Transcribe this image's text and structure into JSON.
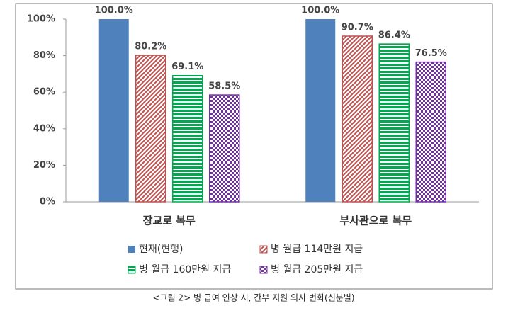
{
  "chart_data": {
    "type": "bar",
    "categories": [
      "장교로 복무",
      "부사관으로 복무"
    ],
    "series": [
      {
        "name": "현재(현행)",
        "color": "#4f81bd",
        "pattern": "solid",
        "values": [
          100.0,
          100.0
        ],
        "value_labels": [
          "100.0%",
          "100.0%"
        ]
      },
      {
        "name": "병 월급 114만원 지급",
        "color": "#c0504d",
        "pattern": "diagonal",
        "values": [
          80.2,
          90.7
        ],
        "value_labels": [
          "80.2%",
          "90.7%"
        ]
      },
      {
        "name": "병 월급 160만원 지급",
        "color": "#00a84f",
        "pattern": "horizontal",
        "values": [
          69.1,
          86.4
        ],
        "value_labels": [
          "69.1%",
          "86.4%"
        ]
      },
      {
        "name": "병 월급 205만원 지급",
        "color": "#7030a0",
        "pattern": "checker",
        "values": [
          58.5,
          76.5
        ],
        "value_labels": [
          "58.5%",
          "76.5%"
        ]
      }
    ],
    "ylim": [
      0,
      100
    ],
    "yticks": [
      {
        "value": 0,
        "label": "0%"
      },
      {
        "value": 20,
        "label": "20%"
      },
      {
        "value": 40,
        "label": "40%"
      },
      {
        "value": 60,
        "label": "60%"
      },
      {
        "value": 80,
        "label": "80%"
      },
      {
        "value": 100,
        "label": "100%"
      }
    ],
    "grid": false,
    "caption": "<그림 2> 병 급여 인상 시, 간부 지원 의사 변화(신분별)"
  }
}
